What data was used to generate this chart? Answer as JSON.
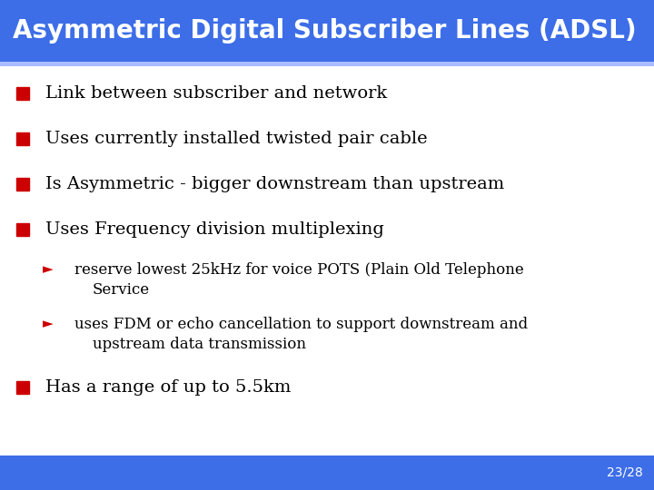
{
  "title": "Asymmetric Digital Subscriber Lines (ADSL)",
  "title_bg_color": "#3D6EE8",
  "title_text_color": "#FFFFFF",
  "slide_bg_color": "#FFFFFF",
  "bullet_color": "#CC0000",
  "text_color": "#000000",
  "footer_bg_color": "#3D6EE8",
  "footer_text": "23/28",
  "footer_text_color": "#FFFFFF",
  "accent_color": "#AABBFF",
  "bullets": [
    "Link between subscriber and network",
    "Uses currently installed twisted pair cable",
    "Is Asymmetric - bigger downstream than upstream",
    "Uses Frequency division multiplexing"
  ],
  "sub_bullet1_line1": "reserve lowest 25kHz for voice POTS (Plain Old Telephone",
  "sub_bullet1_line2": "Service",
  "sub_bullet2_line1": "uses FDM or echo cancellation to support downstream and",
  "sub_bullet2_line2": "upstream data transmission",
  "last_bullet": "Has a range of up to 5.5km",
  "title_fontsize": 20,
  "bullet_fontsize": 14,
  "sub_bullet_fontsize": 12,
  "footer_fontsize": 10
}
